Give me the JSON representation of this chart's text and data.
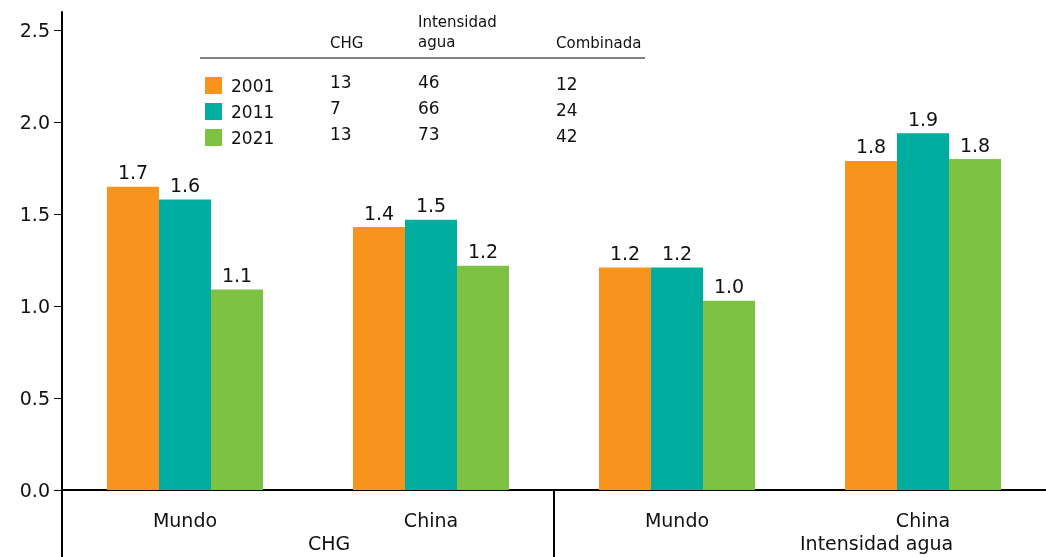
{
  "chart_data": {
    "type": "bar",
    "categories": [
      "Mundo",
      "China",
      "Mundo",
      "China"
    ],
    "series": [
      {
        "name": "2001",
        "color": "#f7941d",
        "values": [
          1.65,
          1.43,
          1.21,
          1.79
        ],
        "value_labels": [
          "1.7",
          "1.4",
          "1.2",
          "1.8"
        ]
      },
      {
        "name": "2011",
        "color": "#00ad9f",
        "values": [
          1.58,
          1.47,
          1.21,
          1.94
        ],
        "value_labels": [
          "1.6",
          "1.5",
          "1.2",
          "1.9"
        ]
      },
      {
        "name": "2021",
        "color": "#7dc242",
        "values": [
          1.09,
          1.22,
          1.03,
          1.8
        ],
        "value_labels": [
          "1.1",
          "1.2",
          "1.0",
          "1.8"
        ]
      }
    ],
    "ylim": [
      0,
      2.6
    ],
    "yticks": [
      {
        "value": 0,
        "label": "0.0"
      },
      0.5,
      {
        "value": 1,
        "label": "1.0"
      },
      1.5,
      {
        "value": 2,
        "label": "2.0"
      },
      2.5
    ],
    "grid": false,
    "legend": "top left",
    "annotations": [
      "CHG",
      "Intensidad agua",
      "CHG",
      "Intensidad agua",
      "Combinada",
      "13",
      "46",
      "12",
      "7",
      "66",
      "24",
      "13",
      "73",
      "42"
    ]
  }
}
